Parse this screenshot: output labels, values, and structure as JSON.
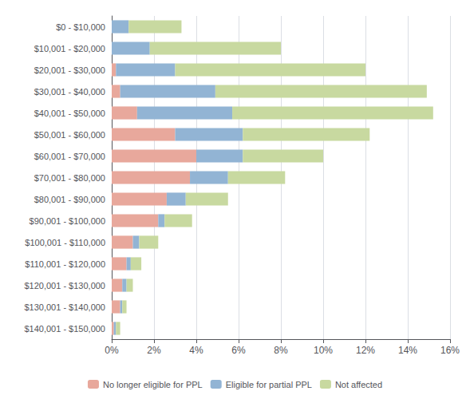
{
  "chart_data": {
    "type": "bar",
    "orientation": "horizontal",
    "stacked": true,
    "grid": true,
    "legend": "bottom",
    "categories": [
      "$0 - $10,000",
      "$10,001 - $20,000",
      "$20,001 - $30,000",
      "$30,001 - $40,000",
      "$40,001 - $50,000",
      "$50,001 - $60,000",
      "$60,001 - $70,000",
      "$70,001 - $80,000",
      "$80,001 - $90,000",
      "$90,001 - $100,000",
      "$100,001 - $110,000",
      "$110,001 - $120,000",
      "$120,001 - $130,000",
      "$130,001 - $140,000",
      "$140,001 - $150,000"
    ],
    "series": [
      {
        "name": "No longer eligible for PPL",
        "color": "#e8a89c",
        "values": [
          0.0,
          0.0,
          0.2,
          0.4,
          1.2,
          3.0,
          4.0,
          3.7,
          2.6,
          2.2,
          1.0,
          0.7,
          0.5,
          0.4,
          0.1
        ]
      },
      {
        "name": "Eligible for partial PPL",
        "color": "#92b4d4",
        "values": [
          0.8,
          1.8,
          2.8,
          4.5,
          4.5,
          3.2,
          2.2,
          1.8,
          0.9,
          0.3,
          0.3,
          0.2,
          0.2,
          0.1,
          0.1
        ]
      },
      {
        "name": "Not affected",
        "color": "#c8d9a0",
        "values": [
          2.5,
          6.2,
          9.0,
          10.0,
          9.5,
          6.0,
          3.8,
          2.7,
          2.0,
          1.3,
          0.9,
          0.5,
          0.3,
          0.2,
          0.2
        ]
      }
    ],
    "xlim": [
      0,
      16
    ],
    "xticks": [
      {
        "value": 0,
        "label": "0%"
      },
      {
        "value": 2,
        "label": "2%"
      },
      {
        "value": 4,
        "label": "4%"
      },
      {
        "value": 6,
        "label": "6%"
      },
      {
        "value": 8,
        "label": "8%"
      },
      {
        "value": 10,
        "label": "10%"
      },
      {
        "value": 12,
        "label": "12%"
      },
      {
        "value": 14,
        "label": "14%"
      },
      {
        "value": 16,
        "label": "16%"
      }
    ]
  }
}
